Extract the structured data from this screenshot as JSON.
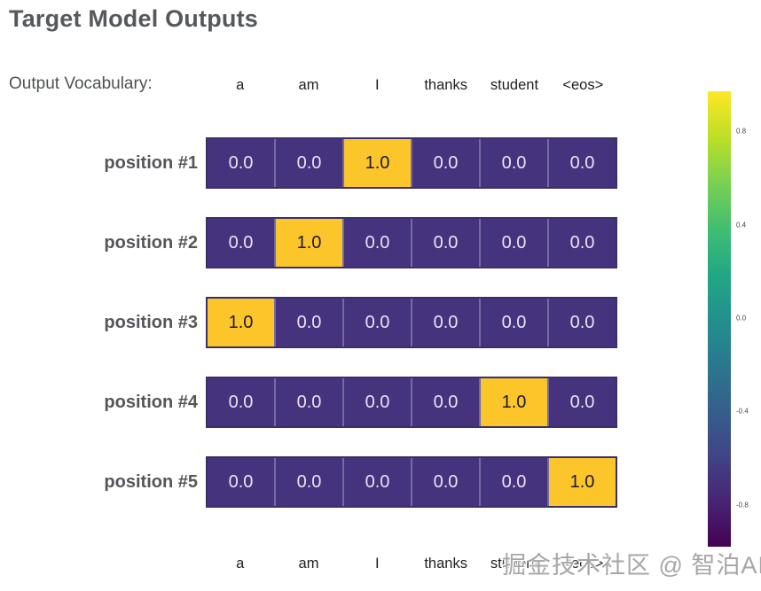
{
  "title": "Target Model Outputs",
  "vocab_caption": "Output Vocabulary:",
  "vocabulary": [
    "a",
    "am",
    "I",
    "thanks",
    "student",
    "<eos>"
  ],
  "watermark": "掘金技术社区 @ 智泊AI",
  "colors": {
    "cell_low": "#46337e",
    "cell_high": "#fcc62b",
    "cell_low_text": "#e9e4f2",
    "cell_high_text": "#1d1833",
    "row_outer_border": "#3b2f69",
    "cell_separator": "#746aa4",
    "title_text": "#55585c",
    "label_text": "#54565a",
    "vocab_text": "#1f1f1f",
    "watermark_text": "#a6a6a6"
  },
  "colorbar": {
    "ticks": [
      0.8,
      0.4,
      0.0,
      -0.4,
      -0.8
    ],
    "range": [
      -1,
      1
    ],
    "gradient_stops": [
      "#fde725",
      "#bddf26",
      "#7ad151",
      "#42be71",
      "#22a884",
      "#21918c",
      "#2a788e",
      "#355f8d",
      "#414487",
      "#482475",
      "#440154"
    ]
  },
  "chart_data": {
    "type": "heatmap",
    "title": "Target Model Outputs",
    "x_categories": [
      "a",
      "am",
      "I",
      "thanks",
      "student",
      "<eos>"
    ],
    "y_categories": [
      "position #1",
      "position #2",
      "position #3",
      "position #4",
      "position #5"
    ],
    "values": [
      [
        0.0,
        0.0,
        1.0,
        0.0,
        0.0,
        0.0
      ],
      [
        0.0,
        1.0,
        0.0,
        0.0,
        0.0,
        0.0
      ],
      [
        1.0,
        0.0,
        0.0,
        0.0,
        0.0,
        0.0
      ],
      [
        0.0,
        0.0,
        0.0,
        0.0,
        1.0,
        0.0
      ],
      [
        0.0,
        0.0,
        0.0,
        0.0,
        0.0,
        1.0
      ]
    ],
    "value_format": "one-decimal",
    "colormap": "viridis",
    "colorbar_ticks": [
      0.8,
      0.4,
      0.0,
      -0.4,
      -0.8
    ],
    "colorbar_range": [
      -1,
      1
    ],
    "legend_position": "right",
    "grid": false
  }
}
